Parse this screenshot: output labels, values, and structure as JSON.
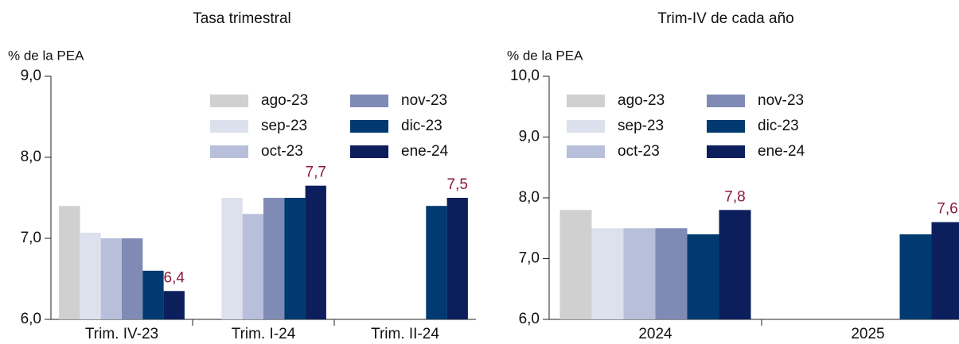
{
  "chart_data": [
    {
      "type": "bar",
      "subtitle": "Tasa trimestral",
      "ylabel": "% de la PEA",
      "categories": [
        "Trim. IV-23",
        "Trim. I-24",
        "Trim. II-24"
      ],
      "ylim": [
        6,
        9
      ],
      "yticks": [
        {
          "value": 6,
          "label": "6,0"
        },
        {
          "value": 7,
          "label": "7,0"
        },
        {
          "value": 8,
          "label": "8,0"
        },
        {
          "value": 9,
          "label": "9,0"
        }
      ],
      "series": [
        {
          "name": "ago-23",
          "color": "#d0d0d0",
          "values": [
            7.4,
            null,
            null
          ]
        },
        {
          "name": "sep-23",
          "color": "#dde1ee",
          "values": [
            7.07,
            7.5,
            null
          ]
        },
        {
          "name": "oct-23",
          "color": "#b8bfda",
          "values": [
            7.0,
            7.3,
            null
          ]
        },
        {
          "name": "nov-23",
          "color": "#7f8bb5",
          "values": [
            7.0,
            7.5,
            null
          ]
        },
        {
          "name": "dic-23",
          "color": "#003a70",
          "values": [
            6.6,
            7.5,
            7.4
          ]
        },
        {
          "name": "ene-24",
          "color": "#0c1f5c",
          "values": [
            6.35,
            7.65,
            7.5
          ],
          "value_labels": [
            "6,4",
            "7,7",
            "7,5"
          ]
        }
      ]
    },
    {
      "type": "bar",
      "subtitle": "Trim-IV de cada año",
      "ylabel": "% de la PEA",
      "categories": [
        "2024",
        "2025"
      ],
      "ylim": [
        6,
        10
      ],
      "yticks": [
        {
          "value": 6,
          "label": "6,0"
        },
        {
          "value": 7,
          "label": "7,0"
        },
        {
          "value": 8,
          "label": "8,0"
        },
        {
          "value": 9,
          "label": "9,0"
        },
        {
          "value": 10,
          "label": "10,0"
        }
      ],
      "series": [
        {
          "name": "ago-23",
          "color": "#d0d0d0",
          "values": [
            7.8,
            null
          ]
        },
        {
          "name": "sep-23",
          "color": "#dde1ee",
          "values": [
            7.5,
            null
          ]
        },
        {
          "name": "oct-23",
          "color": "#b8bfda",
          "values": [
            7.5,
            null
          ]
        },
        {
          "name": "nov-23",
          "color": "#7f8bb5",
          "values": [
            7.5,
            null
          ]
        },
        {
          "name": "dic-23",
          "color": "#003a70",
          "values": [
            7.4,
            7.4
          ]
        },
        {
          "name": "ene-24",
          "color": "#0c1f5c",
          "values": [
            7.8,
            7.6
          ],
          "value_labels": [
            "7,8",
            "7,6"
          ]
        }
      ]
    }
  ]
}
